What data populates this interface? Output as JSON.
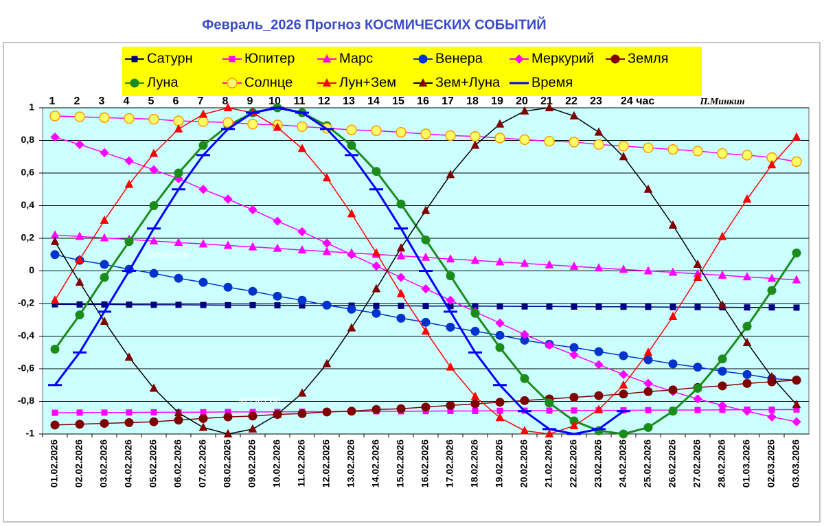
{
  "chart_data": {
    "type": "line",
    "title": "Февраль_2026 Прогноз КОСМИЧЕСКИХ СОБЫТИЙ",
    "author": "П.Минкин",
    "hours": [
      "1",
      "2",
      "3",
      "4",
      "5",
      "6",
      "7",
      "8",
      "9",
      "10",
      "11",
      "12",
      "13",
      "14",
      "15",
      "16",
      "17",
      "18",
      "19",
      "20",
      "21",
      "22",
      "23",
      "24 час"
    ],
    "annotations": [
      "МЕРКУРИЙ",
      "МЕРКУРИЙ",
      "МЕРКУРИЙ",
      "МЕРКУРИЙ",
      "МЕРКУРИЙ"
    ],
    "categories": [
      "01.02.2026",
      "02.02.2026",
      "03.02.2026",
      "04.02.2026",
      "05.02.2026",
      "06.02.2026",
      "07.02.2026",
      "08.02.2026",
      "09.02.2026",
      "10.02.2026",
      "11.02.2026",
      "12.02.2026",
      "13.02.2026",
      "14.02.2026",
      "15.02.2026",
      "16.02.2026",
      "17.02.2026",
      "18.02.2026",
      "19.02.2026",
      "20.02.2026",
      "21.02.2026",
      "22.02.2026",
      "23.02.2026",
      "24.02.2026",
      "25.02.2026",
      "26.02.2026",
      "27.02.2026",
      "28.02.2026",
      "01.03.2026",
      "02.03.2026",
      "03.03.2026"
    ],
    "ylim": [
      -1,
      1
    ],
    "yticks": [
      {
        "value": -1,
        "label": "-1"
      },
      {
        "value": -0.8,
        "label": "-0,8"
      },
      {
        "value": -0.6,
        "label": "-0,6"
      },
      {
        "value": -0.4,
        "label": "-0,4"
      },
      {
        "value": -0.2,
        "label": "-0,2"
      },
      0,
      {
        "value": 0.2,
        "label": "0,2"
      },
      {
        "value": 0.4,
        "label": "0,4"
      },
      {
        "value": 0.6,
        "label": "0,6"
      },
      {
        "value": 0.8,
        "label": "0,8"
      },
      1
    ],
    "grid": true,
    "background": "#ccffff",
    "legend_background": "#ffff00",
    "series": [
      {
        "name": "Сатурн",
        "color": "#000080",
        "marker": "square",
        "marker_color": "#000080",
        "values": [
          -0.205,
          -0.206,
          -0.206,
          -0.207,
          -0.208,
          -0.208,
          -0.209,
          -0.21,
          -0.21,
          -0.211,
          -0.212,
          -0.212,
          -0.213,
          -0.214,
          -0.214,
          -0.215,
          -0.216,
          -0.216,
          -0.217,
          -0.218,
          -0.218,
          -0.219,
          -0.22,
          -0.22,
          -0.221,
          -0.222,
          -0.222,
          -0.223,
          -0.224,
          -0.224,
          -0.225
        ]
      },
      {
        "name": "Юпитер",
        "color": "#ff00ff",
        "marker": "square",
        "marker_color": "#ff00ff",
        "values": [
          -0.87,
          -0.869,
          -0.869,
          -0.868,
          -0.867,
          -0.867,
          -0.866,
          -0.865,
          -0.865,
          -0.864,
          -0.863,
          -0.863,
          -0.862,
          -0.861,
          -0.861,
          -0.86,
          -0.859,
          -0.859,
          -0.858,
          -0.857,
          -0.857,
          -0.856,
          -0.855,
          -0.855,
          -0.854,
          -0.853,
          -0.853,
          -0.852,
          -0.851,
          -0.851,
          -0.85
        ]
      },
      {
        "name": "Марс",
        "color": "#ff00ff",
        "marker": "triangle",
        "marker_color": "#ff00ff",
        "values": [
          0.22,
          0.211,
          0.202,
          0.193,
          0.183,
          0.174,
          0.165,
          0.156,
          0.147,
          0.138,
          0.128,
          0.119,
          0.11,
          0.101,
          0.092,
          0.083,
          0.073,
          0.064,
          0.055,
          0.046,
          0.037,
          0.028,
          0.018,
          0.009,
          0.0,
          -0.009,
          -0.018,
          -0.027,
          -0.037,
          -0.046,
          -0.055
        ]
      },
      {
        "name": "Венера",
        "color": "#0033cc",
        "marker": "circle",
        "marker_color": "#0033cc",
        "values": [
          0.1,
          0.065,
          0.04,
          0.01,
          -0.015,
          -0.045,
          -0.07,
          -0.1,
          -0.125,
          -0.155,
          -0.18,
          -0.21,
          -0.235,
          -0.26,
          -0.29,
          -0.315,
          -0.345,
          -0.37,
          -0.395,
          -0.425,
          -0.45,
          -0.47,
          -0.495,
          -0.52,
          -0.545,
          -0.57,
          -0.59,
          -0.615,
          -0.635,
          -0.66,
          -0.67
        ]
      },
      {
        "name": "Меркурий",
        "color": "#ff00ff",
        "marker": "diamond",
        "marker_color": "#ff00ff",
        "values": [
          0.82,
          0.775,
          0.725,
          0.675,
          0.62,
          0.565,
          0.5,
          0.44,
          0.375,
          0.305,
          0.24,
          0.17,
          0.1,
          0.03,
          -0.04,
          -0.11,
          -0.18,
          -0.25,
          -0.32,
          -0.39,
          -0.455,
          -0.515,
          -0.575,
          -0.635,
          -0.69,
          -0.74,
          -0.785,
          -0.825,
          -0.86,
          -0.895,
          -0.925
        ]
      },
      {
        "name": "Земля",
        "color": "#800000",
        "marker": "circle",
        "marker_color": "#800000",
        "values": [
          -0.945,
          -0.94,
          -0.935,
          -0.93,
          -0.925,
          -0.915,
          -0.905,
          -0.895,
          -0.89,
          -0.88,
          -0.875,
          -0.865,
          -0.86,
          -0.85,
          -0.845,
          -0.835,
          -0.825,
          -0.815,
          -0.805,
          -0.795,
          -0.785,
          -0.775,
          -0.765,
          -0.755,
          -0.74,
          -0.73,
          -0.715,
          -0.705,
          -0.69,
          -0.68,
          -0.67
        ]
      },
      {
        "name": "Луна",
        "color": "#1a8c1a",
        "marker": "circle",
        "marker_color": "#1a8c1a",
        "values": [
          -0.48,
          -0.27,
          -0.04,
          0.18,
          0.4,
          0.6,
          0.77,
          0.89,
          0.97,
          1.0,
          0.97,
          0.89,
          0.77,
          0.61,
          0.41,
          0.19,
          -0.03,
          -0.26,
          -0.47,
          -0.66,
          -0.81,
          -0.92,
          -0.98,
          -1.0,
          -0.96,
          -0.86,
          -0.72,
          -0.54,
          -0.34,
          -0.12,
          0.11
        ]
      },
      {
        "name": "Солнце",
        "color": "#ff00ff",
        "marker": "circle",
        "marker_color": "#ffff66",
        "marker_edge": "#ff9900",
        "values": [
          0.95,
          0.945,
          0.94,
          0.935,
          0.93,
          0.92,
          0.915,
          0.91,
          0.9,
          0.895,
          0.885,
          0.875,
          0.865,
          0.86,
          0.85,
          0.84,
          0.83,
          0.825,
          0.815,
          0.805,
          0.795,
          0.79,
          0.775,
          0.765,
          0.755,
          0.745,
          0.735,
          0.72,
          0.71,
          0.695,
          0.67
        ]
      },
      {
        "name": "Лун+Зем",
        "color": "#ff0000",
        "marker": "triangle",
        "marker_color": "#ff0000",
        "values": [
          -0.18,
          0.07,
          0.31,
          0.53,
          0.72,
          0.87,
          0.96,
          1.0,
          0.97,
          0.88,
          0.75,
          0.57,
          0.35,
          0.11,
          -0.14,
          -0.37,
          -0.59,
          -0.77,
          -0.9,
          -0.98,
          -1.0,
          -0.95,
          -0.85,
          -0.7,
          -0.5,
          -0.28,
          -0.04,
          0.21,
          0.44,
          0.65,
          0.82
        ]
      },
      {
        "name": "Зем+Луна",
        "color": "#000000",
        "marker": "triangle",
        "marker_color": "#800000",
        "values": [
          0.18,
          -0.07,
          -0.31,
          -0.53,
          -0.72,
          -0.87,
          -0.96,
          -1.0,
          -0.97,
          -0.88,
          -0.75,
          -0.57,
          -0.35,
          -0.11,
          0.14,
          0.37,
          0.59,
          0.77,
          0.9,
          0.98,
          1.0,
          0.95,
          0.85,
          0.7,
          0.5,
          0.28,
          0.04,
          -0.21,
          -0.44,
          -0.65,
          -0.82
        ]
      },
      {
        "name": "Время",
        "color": "#0000ff",
        "marker": "dash",
        "marker_color": "#0000ff",
        "values": [
          -0.7,
          -0.5,
          -0.25,
          0.0,
          0.26,
          0.5,
          0.71,
          0.87,
          0.97,
          1.0,
          0.97,
          0.87,
          0.71,
          0.5,
          0.26,
          0.0,
          -0.25,
          -0.5,
          -0.7,
          -0.86,
          -0.97,
          -1.0,
          -0.97,
          -0.86,
          null,
          null,
          null,
          null,
          null,
          null,
          null
        ]
      }
    ]
  }
}
